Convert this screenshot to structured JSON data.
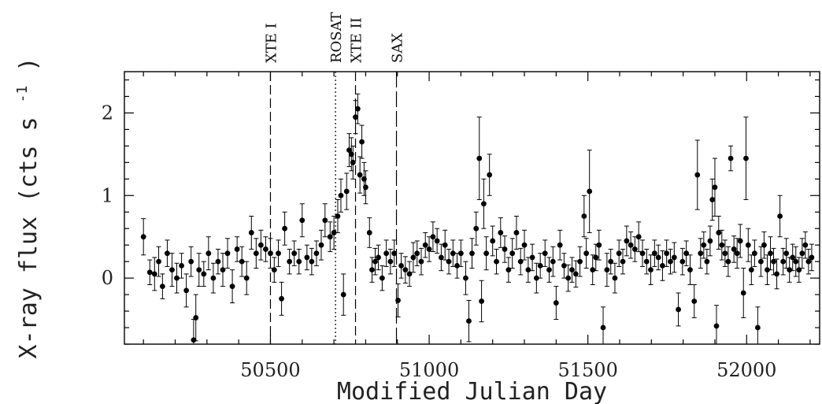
{
  "chart_data": {
    "type": "scatter",
    "xlabel": "Modified Julian Day",
    "ylabel": "X-ray flux (cts s",
    "ylabel_sup": "-1",
    "ylabel_close": ")",
    "xlim": [
      50040,
      52230
    ],
    "ylim": [
      -0.8,
      2.5
    ],
    "x_ticks": [
      50500,
      51000,
      51500,
      52000
    ],
    "y_ticks": [
      0,
      1,
      2
    ],
    "epochs": [
      {
        "label": "XTE I",
        "x": 50500,
        "style": "dashed"
      },
      {
        "label": "ROSAT",
        "x": 50705,
        "style": "dotted"
      },
      {
        "label": "XTE II",
        "x": 50768,
        "style": "dashed"
      },
      {
        "label": "SAX",
        "x": 50897,
        "style": "longdash"
      }
    ],
    "points": [
      [
        50100,
        0.5,
        0.22
      ],
      [
        50120,
        0.07,
        0.15
      ],
      [
        50135,
        0.05,
        0.2
      ],
      [
        50148,
        0.2,
        0.18
      ],
      [
        50160,
        -0.1,
        0.15
      ],
      [
        50175,
        0.3,
        0.16
      ],
      [
        50190,
        0.1,
        0.2
      ],
      [
        50205,
        0.0,
        0.18
      ],
      [
        50220,
        0.15,
        0.15
      ],
      [
        50235,
        -0.15,
        0.2
      ],
      [
        50250,
        0.2,
        0.18
      ],
      [
        50258,
        -0.75,
        0.25
      ],
      [
        50265,
        -0.48,
        0.28
      ],
      [
        50275,
        0.1,
        0.2
      ],
      [
        50290,
        0.05,
        0.15
      ],
      [
        50305,
        0.3,
        0.2
      ],
      [
        50320,
        0.0,
        0.18
      ],
      [
        50335,
        0.2,
        0.15
      ],
      [
        50350,
        0.1,
        0.2
      ],
      [
        50365,
        0.3,
        0.18
      ],
      [
        50380,
        -0.1,
        0.2
      ],
      [
        50395,
        0.35,
        0.15
      ],
      [
        50410,
        0.2,
        0.18
      ],
      [
        50425,
        0.0,
        0.2
      ],
      [
        50440,
        0.55,
        0.2
      ],
      [
        50455,
        0.3,
        0.18
      ],
      [
        50470,
        0.4,
        0.18
      ],
      [
        50485,
        0.35,
        0.15
      ],
      [
        50500,
        0.3,
        0.18
      ],
      [
        50512,
        0.1,
        0.15
      ],
      [
        50525,
        0.3,
        0.16
      ],
      [
        50535,
        -0.25,
        0.2
      ],
      [
        50545,
        0.6,
        0.2
      ],
      [
        50560,
        0.2,
        0.15
      ],
      [
        50575,
        0.3,
        0.15
      ],
      [
        50590,
        0.2,
        0.15
      ],
      [
        50600,
        0.7,
        0.2
      ],
      [
        50615,
        0.25,
        0.15
      ],
      [
        50630,
        0.2,
        0.16
      ],
      [
        50645,
        0.3,
        0.15
      ],
      [
        50660,
        0.4,
        0.18
      ],
      [
        50672,
        0.7,
        0.2
      ],
      [
        50688,
        0.5,
        0.18
      ],
      [
        50700,
        0.55,
        0.2
      ],
      [
        50712,
        0.75,
        0.2
      ],
      [
        50722,
        1.0,
        0.2
      ],
      [
        50730,
        -0.2,
        0.25
      ],
      [
        50740,
        1.05,
        0.22
      ],
      [
        50748,
        1.55,
        0.2
      ],
      [
        50755,
        1.5,
        0.2
      ],
      [
        50760,
        1.4,
        0.2
      ],
      [
        50768,
        1.95,
        0.2
      ],
      [
        50775,
        2.05,
        0.18
      ],
      [
        50782,
        1.25,
        0.22
      ],
      [
        50788,
        1.65,
        0.2
      ],
      [
        50795,
        1.2,
        0.2
      ],
      [
        50800,
        1.1,
        0.2
      ],
      [
        50812,
        0.55,
        0.18
      ],
      [
        50820,
        0.1,
        0.15
      ],
      [
        50830,
        0.2,
        0.16
      ],
      [
        50840,
        0.25,
        0.15
      ],
      [
        50852,
        0.0,
        0.15
      ],
      [
        50865,
        0.3,
        0.16
      ],
      [
        50878,
        0.2,
        0.15
      ],
      [
        50890,
        0.3,
        0.16
      ],
      [
        50902,
        -0.27,
        0.2
      ],
      [
        50912,
        0.15,
        0.15
      ],
      [
        50925,
        0.1,
        0.16
      ],
      [
        50938,
        0.05,
        0.15
      ],
      [
        50950,
        0.25,
        0.18
      ],
      [
        50962,
        0.3,
        0.15
      ],
      [
        50975,
        0.2,
        0.16
      ],
      [
        50988,
        0.4,
        0.15
      ],
      [
        51000,
        0.35,
        0.15
      ],
      [
        51012,
        0.5,
        0.18
      ],
      [
        51025,
        0.45,
        0.15
      ],
      [
        51038,
        0.25,
        0.16
      ],
      [
        51050,
        0.4,
        0.18
      ],
      [
        51062,
        0.2,
        0.15
      ],
      [
        51075,
        0.3,
        0.16
      ],
      [
        51088,
        0.15,
        0.15
      ],
      [
        51100,
        0.3,
        0.16
      ],
      [
        51115,
        0.0,
        0.2
      ],
      [
        51125,
        -0.52,
        0.25
      ],
      [
        51135,
        0.3,
        0.18
      ],
      [
        51148,
        0.6,
        0.2
      ],
      [
        51158,
        1.45,
        0.5
      ],
      [
        51165,
        -0.28,
        0.25
      ],
      [
        51172,
        0.9,
        0.3
      ],
      [
        51180,
        0.3,
        0.2
      ],
      [
        51190,
        1.25,
        0.25
      ],
      [
        51200,
        0.45,
        0.18
      ],
      [
        51212,
        0.2,
        0.15
      ],
      [
        51225,
        0.55,
        0.18
      ],
      [
        51238,
        0.35,
        0.16
      ],
      [
        51250,
        0.1,
        0.15
      ],
      [
        51262,
        0.3,
        0.18
      ],
      [
        51275,
        0.55,
        0.2
      ],
      [
        51288,
        0.2,
        0.16
      ],
      [
        51300,
        0.4,
        0.18
      ],
      [
        51312,
        0.1,
        0.15
      ],
      [
        51325,
        0.25,
        0.16
      ],
      [
        51338,
        0.0,
        0.18
      ],
      [
        51350,
        0.15,
        0.15
      ],
      [
        51365,
        0.3,
        0.16
      ],
      [
        51378,
        0.1,
        0.15
      ],
      [
        51390,
        0.2,
        0.18
      ],
      [
        51400,
        -0.3,
        0.2
      ],
      [
        51412,
        0.4,
        0.18
      ],
      [
        51425,
        0.15,
        0.15
      ],
      [
        51438,
        0.0,
        0.16
      ],
      [
        51450,
        0.1,
        0.15
      ],
      [
        51462,
        0.05,
        0.16
      ],
      [
        51475,
        0.2,
        0.18
      ],
      [
        51488,
        0.75,
        0.25
      ],
      [
        51495,
        0.3,
        0.18
      ],
      [
        51505,
        1.05,
        0.5
      ],
      [
        51515,
        0.1,
        0.18
      ],
      [
        51525,
        0.25,
        0.16
      ],
      [
        51535,
        0.4,
        0.18
      ],
      [
        51548,
        -0.6,
        0.25
      ],
      [
        51560,
        0.1,
        0.2
      ],
      [
        51572,
        0.2,
        0.15
      ],
      [
        51585,
        0.0,
        0.18
      ],
      [
        51598,
        0.3,
        0.16
      ],
      [
        51610,
        0.2,
        0.15
      ],
      [
        51622,
        0.45,
        0.18
      ],
      [
        51635,
        0.4,
        0.16
      ],
      [
        51648,
        0.35,
        0.15
      ],
      [
        51660,
        0.5,
        0.18
      ],
      [
        51672,
        0.3,
        0.16
      ],
      [
        51685,
        0.2,
        0.15
      ],
      [
        51698,
        0.1,
        0.18
      ],
      [
        51710,
        0.3,
        0.16
      ],
      [
        51722,
        0.25,
        0.15
      ],
      [
        51735,
        0.15,
        0.18
      ],
      [
        51748,
        0.3,
        0.16
      ],
      [
        51760,
        0.2,
        0.15
      ],
      [
        51772,
        0.25,
        0.18
      ],
      [
        51785,
        -0.38,
        0.2
      ],
      [
        51798,
        0.2,
        0.16
      ],
      [
        51810,
        0.3,
        0.15
      ],
      [
        51822,
        0.1,
        0.18
      ],
      [
        51835,
        -0.28,
        0.2
      ],
      [
        51845,
        1.25,
        0.42
      ],
      [
        51855,
        0.3,
        0.18
      ],
      [
        51865,
        0.4,
        0.16
      ],
      [
        51875,
        0.2,
        0.15
      ],
      [
        51885,
        0.45,
        0.18
      ],
      [
        51892,
        0.95,
        0.25
      ],
      [
        51900,
        1.1,
        0.35
      ],
      [
        51905,
        -0.58,
        0.25
      ],
      [
        51912,
        0.55,
        0.2
      ],
      [
        51922,
        0.4,
        0.18
      ],
      [
        51932,
        0.3,
        0.16
      ],
      [
        51942,
        0.2,
        0.18
      ],
      [
        51950,
        1.45,
        0.15
      ],
      [
        51960,
        0.35,
        0.16
      ],
      [
        51970,
        0.3,
        0.18
      ],
      [
        51980,
        0.45,
        0.2
      ],
      [
        51990,
        -0.18,
        0.3
      ],
      [
        51998,
        1.45,
        0.5
      ],
      [
        52005,
        0.4,
        0.2
      ],
      [
        52015,
        0.1,
        0.18
      ],
      [
        52025,
        0.3,
        0.16
      ],
      [
        52035,
        -0.6,
        0.25
      ],
      [
        52045,
        0.2,
        0.18
      ],
      [
        52055,
        0.4,
        0.16
      ],
      [
        52065,
        0.1,
        0.18
      ],
      [
        52075,
        0.3,
        0.2
      ],
      [
        52085,
        0.2,
        0.16
      ],
      [
        52095,
        0.05,
        0.18
      ],
      [
        52105,
        0.75,
        0.25
      ],
      [
        52115,
        0.2,
        0.16
      ],
      [
        52125,
        0.3,
        0.18
      ],
      [
        52135,
        0.1,
        0.15
      ],
      [
        52145,
        0.25,
        0.16
      ],
      [
        52155,
        0.2,
        0.18
      ],
      [
        52165,
        0.1,
        0.15
      ],
      [
        52175,
        0.3,
        0.18
      ],
      [
        52185,
        0.4,
        0.16
      ],
      [
        52195,
        0.2,
        0.15
      ],
      [
        52205,
        0.25,
        0.16
      ]
    ]
  }
}
